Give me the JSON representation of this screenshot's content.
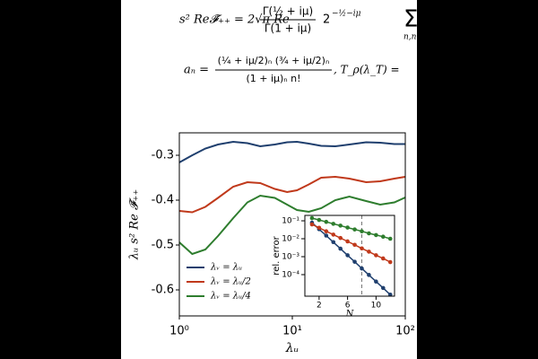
{
  "equations": {
    "line1": {
      "lhs": "s² Re𝓕̃₊₊ = 2√π Re",
      "num": "Γ(½ + iμ)",
      "den": "Γ(1 + iμ)",
      "pow": "2",
      "exp": "−½−iμ",
      "sum": "Σ",
      "sub": "n,n"
    },
    "line2": {
      "lhs": "aₙ =",
      "num": "(¼ + iμ/2)ₙ (¾ + iμ/2)ₙ",
      "den": "(1 + iμ)ₙ n!",
      "rhs": ",     T_ρ(λ_T) ="
    }
  },
  "chart_data": [
    {
      "type": "line",
      "xlabel": "λᵤ",
      "ylabel": "λᵤ s² Re 𝓕̄₊₊",
      "xlog": true,
      "xlim": [
        1,
        100
      ],
      "xticks": [
        {
          "value": 1,
          "label": "10⁰"
        },
        {
          "value": 10,
          "label": "10¹"
        },
        {
          "value": 100,
          "label": "10²"
        }
      ],
      "ylim": [
        -0.658,
        -0.25
      ],
      "yticks": [
        -0.3,
        -0.4,
        -0.5,
        -0.6
      ],
      "legend": "lower left",
      "x": [
        1,
        1.3,
        1.7,
        2.2,
        3,
        4,
        5.2,
        7,
        9,
        11,
        14,
        18,
        24,
        32,
        45,
        60,
        80,
        100
      ],
      "series": [
        {
          "name": "λᵥ = λᵤ",
          "color": "#1f3f6e",
          "values": [
            -0.316,
            -0.3,
            -0.285,
            -0.276,
            -0.27,
            -0.273,
            -0.28,
            -0.276,
            -0.271,
            -0.27,
            -0.274,
            -0.279,
            -0.28,
            -0.276,
            -0.271,
            -0.272,
            -0.275,
            -0.275
          ]
        },
        {
          "name": "λᵥ = λᵤ/2",
          "color": "#c0391b",
          "values": [
            -0.424,
            -0.427,
            -0.415,
            -0.395,
            -0.37,
            -0.36,
            -0.362,
            -0.375,
            -0.382,
            -0.378,
            -0.365,
            -0.35,
            -0.348,
            -0.352,
            -0.36,
            -0.358,
            -0.352,
            -0.348
          ]
        },
        {
          "name": "λᵥ = λᵤ/4",
          "color": "#2e7d2e",
          "values": [
            -0.494,
            -0.52,
            -0.51,
            -0.48,
            -0.44,
            -0.405,
            -0.39,
            -0.395,
            -0.41,
            -0.422,
            -0.426,
            -0.418,
            -0.4,
            -0.392,
            -0.402,
            -0.41,
            -0.405,
            -0.394
          ]
        }
      ]
    },
    {
      "type": "line",
      "xlabel": "N",
      "ylabel": "rel. error",
      "ylog": true,
      "markers": true,
      "xlim": [
        0,
        12.6
      ],
      "xticks": [
        2,
        6,
        10
      ],
      "ylim": [
        6.3e-06,
        0.2
      ],
      "yticks": [
        {
          "value": 0.0001,
          "label": "10⁻⁴"
        },
        {
          "value": 0.001,
          "label": "10⁻³"
        },
        {
          "value": 0.01,
          "label": "10⁻²"
        },
        {
          "value": 0.1,
          "label": "10⁻¹"
        }
      ],
      "vline": 8,
      "x": [
        1,
        2,
        3,
        4,
        5,
        6,
        7,
        8,
        9,
        10,
        11,
        12
      ],
      "series": [
        {
          "color": "#1f3f6e",
          "values": [
            0.079,
            0.034,
            0.015,
            0.0065,
            0.0028,
            0.0012,
            0.00052,
            0.00022,
            9.6e-05,
            4.1e-05,
            1.8e-05,
            7.7e-06
          ]
        },
        {
          "color": "#c0391b",
          "values": [
            0.063,
            0.041,
            0.026,
            0.017,
            0.011,
            0.0071,
            0.0046,
            0.0029,
            0.0019,
            0.0012,
            0.0008,
            0.0005
          ]
        },
        {
          "color": "#2e7d2e",
          "values": [
            0.141,
            0.111,
            0.087,
            0.068,
            0.054,
            0.042,
            0.033,
            0.026,
            0.02,
            0.016,
            0.013,
            0.01
          ]
        }
      ]
    }
  ]
}
